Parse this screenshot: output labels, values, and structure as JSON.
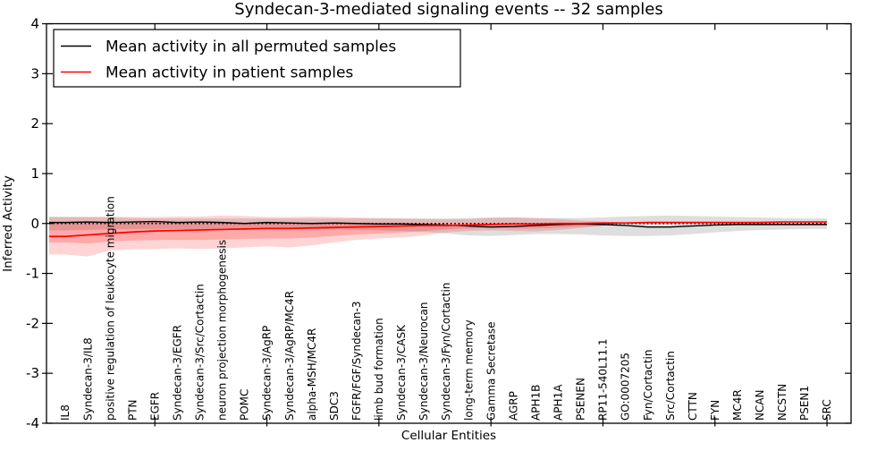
{
  "chart_data": {
    "type": "line",
    "title": "Syndecan-3-mediated signaling events -- 32 samples",
    "xlabel": "Cellular Entities",
    "ylabel": "Inferred Activity",
    "ylim": [
      -4,
      4
    ],
    "yticks": [
      -4,
      -3,
      -2,
      -1,
      0,
      1,
      2,
      3,
      4
    ],
    "grid": false,
    "zero_line": {
      "value": 0,
      "style": "dotted",
      "color": "#000000"
    },
    "legend": {
      "position": "upper left",
      "entries": [
        {
          "label": "Mean activity in all permuted samples",
          "color": "#000000"
        },
        {
          "label": "Mean activity in patient samples",
          "color": "#ff0000"
        }
      ]
    },
    "categories": [
      "IL8",
      "Syndecan-3/IL8",
      "positive regulation of leukocyte migration",
      "PTN",
      "EGFR",
      "Syndecan-3/EGFR",
      "Syndecan-3/Src/Cortactin",
      "neuron projection morphogenesis",
      "POMC",
      "Syndecan-3/AgRP",
      "Syndecan-3/AgRP/MC4R",
      "alpha-MSH/MC4R",
      "SDC3",
      "FGFR/FGF/Syndecan-3",
      "limb bud formation",
      "Syndecan-3/CASK",
      "Syndecan-3/Neurocan",
      "Syndecan-3/Fyn/Cortactin",
      "long-term memory",
      "Gamma Secretase",
      "AGRP",
      "APH1B",
      "APH1A",
      "PSENEN",
      "RP11-540L11.1",
      "GO:0007205",
      "Fyn/Cortactin",
      "Src/Cortactin",
      "CTTN",
      "FYN",
      "MC4R",
      "NCAN",
      "NCSTN",
      "PSEN1",
      "SRC"
    ],
    "major_xtick_indices": [
      4,
      9,
      14,
      19,
      24,
      29,
      34
    ],
    "series": [
      {
        "name": "Mean activity in all permuted samples",
        "color": "#000000",
        "width": 1.4,
        "values": [
          0.02,
          0.03,
          0.02,
          0.03,
          0.04,
          0.02,
          0.03,
          0.02,
          0.0,
          0.02,
          0.01,
          0.0,
          0.01,
          0.0,
          -0.01,
          -0.01,
          -0.02,
          -0.03,
          -0.05,
          -0.07,
          -0.06,
          -0.04,
          -0.02,
          -0.01,
          -0.02,
          -0.04,
          -0.07,
          -0.07,
          -0.05,
          -0.03,
          -0.02,
          -0.02,
          -0.02,
          -0.02,
          -0.02
        ]
      },
      {
        "name": "Mean activity in patient samples",
        "color": "#ff0000",
        "width": 1.7,
        "values": [
          -0.26,
          -0.23,
          -0.2,
          -0.17,
          -0.15,
          -0.14,
          -0.13,
          -0.12,
          -0.11,
          -0.1,
          -0.1,
          -0.09,
          -0.08,
          -0.07,
          -0.06,
          -0.05,
          -0.04,
          -0.04,
          -0.03,
          -0.02,
          -0.01,
          -0.01,
          0.0,
          0.0,
          0.01,
          0.01,
          0.02,
          0.02,
          0.02,
          0.02,
          0.02,
          0.02,
          0.03,
          0.03,
          0.03
        ]
      }
    ],
    "bands": [
      {
        "name": "permuted-samples-std",
        "color": "#000000",
        "opacity": 0.13,
        "top": [
          0.14,
          0.13,
          0.12,
          0.11,
          0.1,
          0.1,
          0.1,
          0.1,
          0.1,
          0.1,
          0.1,
          0.1,
          0.1,
          0.1,
          0.1,
          0.1,
          0.1,
          0.1,
          0.11,
          0.12,
          0.12,
          0.11,
          0.11,
          0.11,
          0.12,
          0.14,
          0.15,
          0.16,
          0.15,
          0.14,
          0.13,
          0.12,
          0.11,
          0.1,
          0.1
        ],
        "bottom": [
          -0.14,
          -0.13,
          -0.12,
          -0.11,
          -0.11,
          -0.11,
          -0.11,
          -0.11,
          -0.11,
          -0.11,
          -0.11,
          -0.11,
          -0.12,
          -0.13,
          -0.14,
          -0.15,
          -0.17,
          -0.2,
          -0.24,
          -0.25,
          -0.23,
          -0.21,
          -0.21,
          -0.22,
          -0.24,
          -0.25,
          -0.25,
          -0.24,
          -0.21,
          -0.18,
          -0.15,
          -0.13,
          -0.12,
          -0.11,
          -0.11
        ]
      },
      {
        "name": "patient-samples-std-outer",
        "color": "#ff0000",
        "opacity": 0.17,
        "top": [
          0.12,
          0.13,
          0.14,
          0.13,
          0.13,
          0.14,
          0.14,
          0.16,
          0.15,
          0.13,
          0.13,
          0.14,
          0.13,
          0.12,
          0.11,
          0.1,
          0.09,
          0.08,
          0.09,
          0.11,
          0.12,
          0.11,
          0.09,
          0.06,
          0.04,
          0.02
        ],
        "bottom": [
          -0.62,
          -0.66,
          -0.54,
          -0.52,
          -0.51,
          -0.5,
          -0.51,
          -0.5,
          -0.48,
          -0.46,
          -0.48,
          -0.44,
          -0.38,
          -0.33,
          -0.3,
          -0.28,
          -0.24,
          -0.18,
          -0.15,
          -0.14,
          -0.15,
          -0.16,
          -0.13,
          -0.09,
          -0.05,
          0.02
        ]
      },
      {
        "name": "patient-samples-std-inner",
        "color": "#ff0000",
        "opacity": 0.2,
        "top": [
          0.02,
          0.02,
          0.02,
          0.02,
          0.03,
          0.01,
          0.02,
          0.01,
          -0.01,
          0.0,
          -0.01,
          -0.01,
          0.0,
          -0.01,
          -0.02,
          -0.02,
          -0.02,
          -0.03,
          -0.04,
          -0.05,
          -0.04,
          -0.03,
          -0.02,
          -0.01,
          0.0,
          0.02
        ],
        "bottom": [
          -0.38,
          -0.4,
          -0.36,
          -0.34,
          -0.33,
          -0.33,
          -0.33,
          -0.32,
          -0.31,
          -0.3,
          -0.3,
          -0.28,
          -0.25,
          -0.22,
          -0.2,
          -0.18,
          -0.15,
          -0.12,
          -0.1,
          -0.09,
          -0.1,
          -0.1,
          -0.08,
          -0.06,
          -0.04,
          0.02
        ]
      }
    ]
  }
}
